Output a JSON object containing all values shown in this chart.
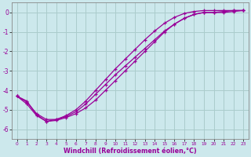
{
  "xlabel": "Windchill (Refroidissement éolien,°C)",
  "bg_color": "#cce8ec",
  "line_color": "#990099",
  "grid_color": "#aacccc",
  "x_ticks": [
    0,
    1,
    2,
    3,
    4,
    5,
    6,
    7,
    8,
    9,
    10,
    11,
    12,
    13,
    14,
    15,
    16,
    17,
    18,
    19,
    20,
    21,
    22,
    23
  ],
  "y_ticks": [
    0,
    -1,
    -2,
    -3,
    -4,
    -5,
    -6
  ],
  "xlim": [
    -0.5,
    23.5
  ],
  "ylim": [
    -6.5,
    0.5
  ],
  "line1_x": [
    0,
    1,
    2,
    3,
    4,
    5,
    6,
    7,
    8,
    9,
    10,
    11,
    12,
    13,
    14,
    15,
    16,
    17,
    18,
    19,
    20,
    21,
    22,
    23
  ],
  "line1_y": [
    -4.3,
    -4.7,
    -5.3,
    -5.6,
    -5.55,
    -5.4,
    -5.2,
    -4.9,
    -4.5,
    -4.0,
    -3.5,
    -3.0,
    -2.5,
    -2.0,
    -1.5,
    -1.0,
    -0.6,
    -0.3,
    -0.1,
    0.0,
    0.0,
    0.0,
    0.05,
    0.1
  ],
  "line2_x": [
    0,
    1,
    2,
    3,
    4,
    5,
    6,
    7,
    8,
    9,
    10,
    11,
    12,
    13,
    14,
    15,
    16,
    17,
    18,
    19,
    20,
    21,
    22,
    23
  ],
  "line2_y": [
    -4.3,
    -4.6,
    -5.2,
    -5.5,
    -5.5,
    -5.35,
    -5.1,
    -4.7,
    -4.2,
    -3.7,
    -3.2,
    -2.75,
    -2.3,
    -1.85,
    -1.4,
    -0.95,
    -0.6,
    -0.3,
    -0.1,
    0.0,
    0.0,
    0.05,
    0.1,
    0.1
  ],
  "line3_x": [
    0,
    1,
    2,
    3,
    4,
    5,
    6,
    7,
    8,
    9,
    10,
    11,
    12,
    13,
    14,
    15,
    16,
    17,
    18,
    19,
    20,
    21,
    22,
    23
  ],
  "line3_y": [
    -4.3,
    -4.55,
    -5.25,
    -5.6,
    -5.5,
    -5.3,
    -5.0,
    -4.55,
    -4.0,
    -3.45,
    -2.9,
    -2.4,
    -1.9,
    -1.4,
    -0.95,
    -0.55,
    -0.25,
    -0.05,
    0.05,
    0.1,
    0.1,
    0.1,
    0.1,
    0.1
  ]
}
